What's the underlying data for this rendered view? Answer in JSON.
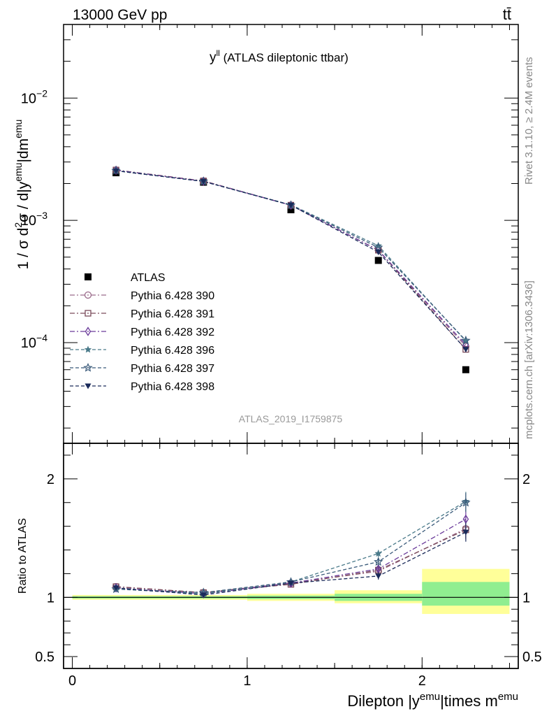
{
  "header": {
    "left": "13000 GeV pp",
    "right": "tt̄"
  },
  "side_labels": {
    "rivet": "Rivet 3.1.10, ≥ 2.4M events",
    "mcplots": "mcplots.cern.ch [arXiv:1306.3436]"
  },
  "chart_data": [
    {
      "type": "scatter",
      "title": "y^ll (ATLAS dileptonic ttbar)",
      "title_main": "y",
      "title_sup": "ll",
      "title_rest": " (ATLAS dileptonic ttbar)",
      "analysis_label": "ATLAS_2019_I1759875",
      "ylabel": "1 / σ  d²σ / d|y^emu|dm^emu",
      "yscale": "log",
      "ylim": [
        1.5e-05,
        0.04
      ],
      "xlim": [
        -0.05,
        2.55
      ],
      "yticks": [
        {
          "value": 0.0001,
          "base": "10",
          "exp": "−4"
        },
        {
          "value": 0.001,
          "base": "10",
          "exp": "−3"
        },
        {
          "value": 0.01,
          "base": "10",
          "exp": "−2"
        }
      ],
      "x": [
        0.25,
        0.75,
        1.25,
        1.75,
        2.25
      ],
      "series": [
        {
          "name": "ATLAS",
          "marker": "square-filled",
          "color": "#000000",
          "values": [
            0.00245,
            0.00205,
            0.00122,
            0.00047,
            6e-05
          ]
        },
        {
          "name": "Pythia 6.428 390",
          "marker": "circle-open",
          "color": "#9a6a8a",
          "dash": "7,3,2,3",
          "values": [
            0.00258,
            0.0021,
            0.00133,
            0.00057,
            9.3e-05
          ]
        },
        {
          "name": "Pythia 6.428 391",
          "marker": "square-open",
          "color": "#7a4a5a",
          "dash": "7,3,2,3",
          "values": [
            0.00258,
            0.0021,
            0.00133,
            0.00057,
            8.8e-05
          ]
        },
        {
          "name": "Pythia 6.428 392",
          "marker": "diamond-open",
          "color": "#6a3a9a",
          "dash": "7,3,2,3",
          "values": [
            0.00257,
            0.00209,
            0.00133,
            0.00057,
            9.6e-05
          ]
        },
        {
          "name": "Pythia 6.428 396",
          "marker": "star-filled",
          "color": "#4a7a8a",
          "dash": "5,3",
          "values": [
            0.00255,
            0.00208,
            0.00134,
            0.00062,
            0.000103
          ]
        },
        {
          "name": "Pythia 6.428 397",
          "marker": "star-open",
          "color": "#3a5a7a",
          "dash": "5,3",
          "values": [
            0.00255,
            0.00208,
            0.00133,
            0.0006,
            0.000104
          ]
        },
        {
          "name": "Pythia 6.428 398",
          "marker": "triangle-down-filled",
          "color": "#1a2a5a",
          "dash": "5,3",
          "values": [
            0.00254,
            0.00208,
            0.00133,
            0.00055,
            8.8e-05
          ]
        }
      ]
    },
    {
      "type": "scatter",
      "ylabel": "Ratio to ATLAS",
      "xlabel": "Dilepton |y^emu|times m^emu",
      "xlabel_parts": [
        "Dilepton |y",
        "emu",
        "|times m",
        "emu"
      ],
      "ylim": [
        0.4,
        2.3
      ],
      "xlim": [
        -0.05,
        2.55
      ],
      "yticks": [
        {
          "value": 0.5,
          "label": "0.5"
        },
        {
          "value": 1,
          "label": "1"
        },
        {
          "value": 2,
          "label": "2"
        }
      ],
      "xticks": [
        {
          "value": 0,
          "label": "0"
        },
        {
          "value": 1,
          "label": "1"
        },
        {
          "value": 2,
          "label": "2"
        }
      ],
      "bands": [
        {
          "x": [
            0,
            1
          ],
          "inner": [
            0.99,
            1.01
          ],
          "outer": [
            0.98,
            1.02
          ]
        },
        {
          "x": [
            1,
            1.5
          ],
          "inner": [
            0.985,
            1.015
          ],
          "outer": [
            0.97,
            1.03
          ]
        },
        {
          "x": [
            1.5,
            2
          ],
          "inner": [
            0.97,
            1.03
          ],
          "outer": [
            0.95,
            1.06
          ]
        },
        {
          "x": [
            2,
            2.5
          ],
          "inner": [
            0.93,
            1.13
          ],
          "outer": [
            0.86,
            1.24
          ]
        }
      ],
      "x": [
        0.25,
        0.75,
        1.25,
        1.75,
        2.25
      ],
      "series": [
        {
          "name": "Pythia 6.428 390",
          "values": [
            1.09,
            1.04,
            1.12,
            1.22,
            1.58
          ]
        },
        {
          "name": "Pythia 6.428 391",
          "values": [
            1.09,
            1.04,
            1.11,
            1.23,
            1.57
          ]
        },
        {
          "name": "Pythia 6.428 392",
          "values": [
            1.08,
            1.03,
            1.12,
            1.24,
            1.66
          ]
        },
        {
          "name": "Pythia 6.428 396",
          "values": [
            1.07,
            1.03,
            1.13,
            1.37,
            1.81
          ]
        },
        {
          "name": "Pythia 6.428 397",
          "values": [
            1.07,
            1.04,
            1.13,
            1.3,
            1.8
          ]
        },
        {
          "name": "Pythia 6.428 398",
          "values": [
            1.08,
            1.02,
            1.12,
            1.18,
            1.55
          ]
        }
      ],
      "errors_last_bin": 0.08
    }
  ],
  "colors": {
    "band_inner": "#90ee90",
    "band_outer": "#ffff99"
  }
}
